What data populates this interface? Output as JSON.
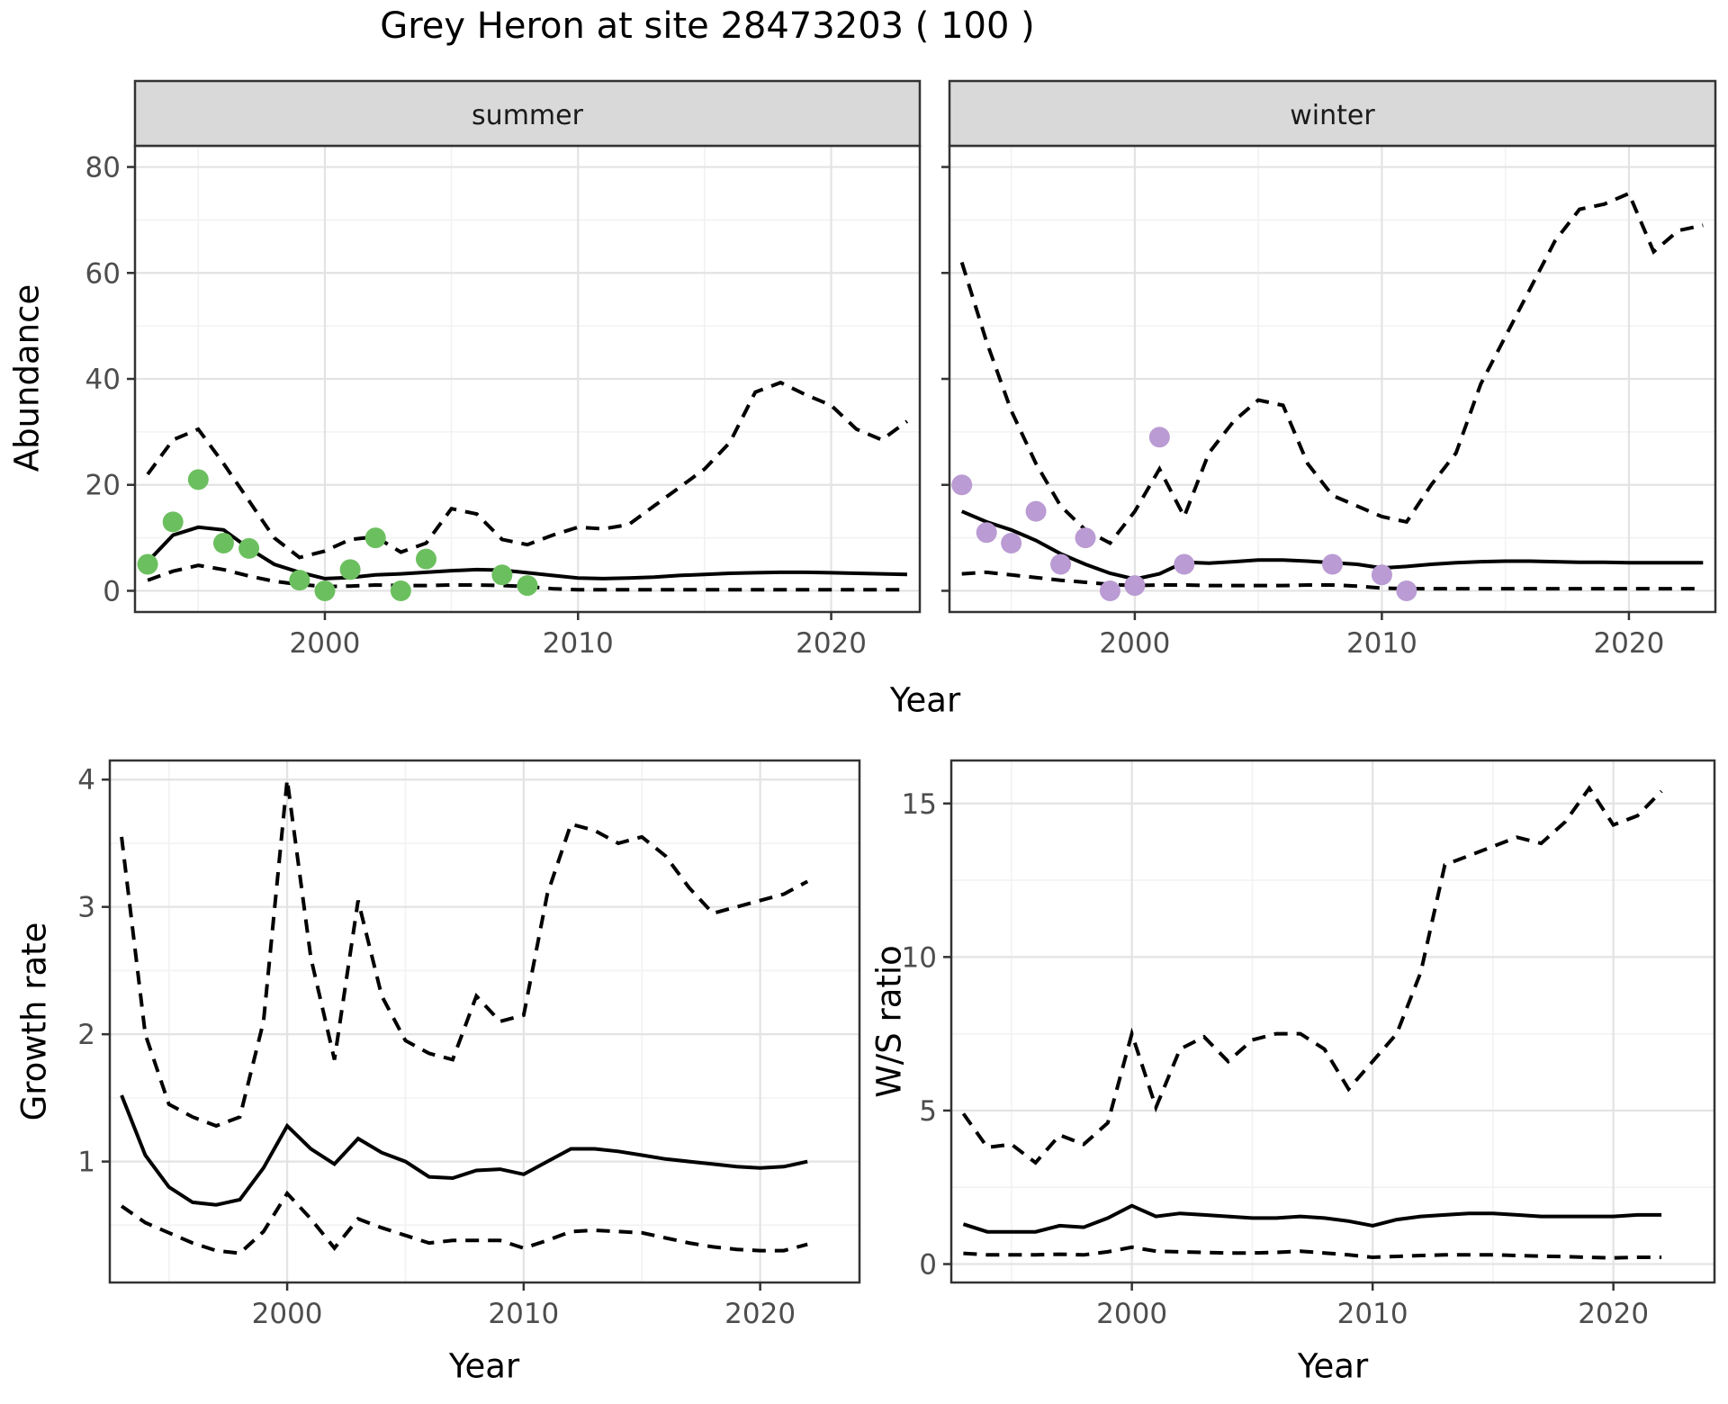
{
  "title": "Grey Heron at site 28473203 ( 100 )",
  "axes": {
    "abundance_label": "Abundance",
    "year_top_label": "Year",
    "growth_label": "Growth rate",
    "ws_label": "W/S ratio",
    "year_growth_label": "Year",
    "year_ws_label": "Year"
  },
  "colors": {
    "summer_point": "#6CBF5F",
    "winter_point": "#BA9BD3",
    "line": "#000000",
    "strip_bg": "#D9D9D9",
    "strip_text": "#1a1a1a",
    "panel_border": "#333333",
    "grid_major": "#E3E3E3",
    "grid_minor": "#F2F2F2",
    "tick_text": "#4d4d4d"
  },
  "chart_data": [
    {
      "id": "abundance_summer",
      "type": "line",
      "facet_label": "summer",
      "xlabel": "Year",
      "ylabel": "Abundance",
      "xlim": [
        1992.5,
        2023.5
      ],
      "ylim": [
        -4,
        84
      ],
      "xticks": [
        2000,
        2010,
        2020
      ],
      "xminor": [
        1995,
        2005,
        2015
      ],
      "yticks": [
        0,
        20,
        40,
        60,
        80
      ],
      "yminor": [
        10,
        30,
        50,
        70
      ],
      "show_ytick_labels": true,
      "years": [
        1993,
        1994,
        1995,
        1996,
        1997,
        1998,
        1999,
        2000,
        2001,
        2002,
        2003,
        2004,
        2005,
        2006,
        2007,
        2008,
        2009,
        2010,
        2011,
        2012,
        2013,
        2014,
        2015,
        2016,
        2017,
        2018,
        2019,
        2020,
        2021,
        2022,
        2023
      ],
      "series": [
        {
          "name": "fit",
          "style": "solid",
          "values": [
            5.5,
            10.5,
            12,
            11.5,
            8,
            5,
            3.5,
            2.3,
            2.5,
            3.0,
            3.2,
            3.5,
            3.8,
            4.0,
            3.9,
            3.4,
            2.9,
            2.4,
            2.3,
            2.4,
            2.6,
            2.9,
            3.1,
            3.3,
            3.4,
            3.5,
            3.5,
            3.4,
            3.3,
            3.2,
            3.1
          ]
        },
        {
          "name": "upper_ci",
          "style": "dashed",
          "values": [
            22,
            28.5,
            30.5,
            24,
            17,
            10,
            6.3,
            7.5,
            9.7,
            10.2,
            7.3,
            9,
            15.5,
            14.5,
            9.7,
            8.7,
            10.5,
            12,
            11.7,
            12.5,
            16,
            19.5,
            23,
            28,
            37.5,
            39.3,
            37,
            35,
            30.5,
            28.5,
            32
          ]
        },
        {
          "name": "lower_ci",
          "style": "dashed",
          "values": [
            2,
            3.7,
            4.8,
            4,
            2.8,
            1.8,
            1.2,
            0.8,
            0.9,
            1.1,
            1.0,
            1.0,
            1.1,
            1.1,
            1.0,
            0.8,
            0.4,
            0.2,
            0.2,
            0.2,
            0.2,
            0.2,
            0.2,
            0.2,
            0.2,
            0.2,
            0.2,
            0.2,
            0.2,
            0.2,
            0.2
          ]
        }
      ],
      "points": {
        "name": "summer_observations",
        "color_key": "summer_point",
        "data": [
          [
            1993,
            5
          ],
          [
            1994,
            13
          ],
          [
            1995,
            21
          ],
          [
            1996,
            9
          ],
          [
            1997,
            8
          ],
          [
            1999,
            2
          ],
          [
            2000,
            0
          ],
          [
            2001,
            4
          ],
          [
            2002,
            10
          ],
          [
            2003,
            0
          ],
          [
            2004,
            6
          ],
          [
            2007,
            3
          ],
          [
            2008,
            1
          ]
        ]
      }
    },
    {
      "id": "abundance_winter",
      "type": "line",
      "facet_label": "winter",
      "xlabel": "Year",
      "ylabel": "Abundance",
      "xlim": [
        1992.5,
        2023.5
      ],
      "ylim": [
        -4,
        84
      ],
      "xticks": [
        2000,
        2010,
        2020
      ],
      "xminor": [
        1995,
        2005,
        2015
      ],
      "yticks": [
        0,
        20,
        40,
        60,
        80
      ],
      "yminor": [
        10,
        30,
        50,
        70
      ],
      "show_ytick_labels": false,
      "years": [
        1993,
        1994,
        1995,
        1996,
        1997,
        1998,
        1999,
        2000,
        2001,
        2002,
        2003,
        2004,
        2005,
        2006,
        2007,
        2008,
        2009,
        2010,
        2011,
        2012,
        2013,
        2014,
        2015,
        2016,
        2017,
        2018,
        2019,
        2020,
        2021,
        2022,
        2023
      ],
      "series": [
        {
          "name": "fit",
          "style": "solid",
          "values": [
            15,
            13,
            11.5,
            9.5,
            7,
            5,
            3.3,
            2.2,
            3.2,
            5.4,
            5.2,
            5.5,
            5.8,
            5.8,
            5.6,
            5.3,
            5.0,
            4.3,
            4.6,
            5.0,
            5.3,
            5.5,
            5.6,
            5.6,
            5.5,
            5.4,
            5.4,
            5.3,
            5.3,
            5.3,
            5.3
          ]
        },
        {
          "name": "upper_ci",
          "style": "dashed",
          "values": [
            62,
            47,
            34,
            24,
            16,
            11.5,
            9,
            15,
            23,
            14,
            26,
            32,
            36,
            35,
            24,
            18,
            16,
            14,
            13,
            20,
            26,
            39,
            48,
            57,
            66,
            72,
            73,
            75,
            64,
            68,
            69
          ]
        },
        {
          "name": "lower_ci",
          "style": "dashed",
          "values": [
            3.2,
            3.5,
            3.0,
            2.5,
            2.0,
            1.6,
            1.2,
            1.0,
            1.1,
            1.1,
            1.0,
            1.0,
            1.0,
            1.0,
            1.1,
            1.1,
            0.9,
            0.5,
            0.4,
            0.4,
            0.4,
            0.4,
            0.4,
            0.4,
            0.4,
            0.4,
            0.4,
            0.4,
            0.4,
            0.4,
            0.4
          ]
        }
      ],
      "points": {
        "name": "winter_observations",
        "color_key": "winter_point",
        "data": [
          [
            1993,
            20
          ],
          [
            1994,
            11
          ],
          [
            1995,
            9
          ],
          [
            1996,
            15
          ],
          [
            1997,
            5
          ],
          [
            1998,
            10
          ],
          [
            1999,
            0
          ],
          [
            2000,
            1
          ],
          [
            2001,
            29
          ],
          [
            2002,
            5
          ],
          [
            2008,
            5
          ],
          [
            2010,
            3
          ],
          [
            2011,
            0
          ]
        ]
      }
    },
    {
      "id": "growth_rate",
      "type": "line",
      "facet_label": "",
      "xlabel": "Year",
      "ylabel": "Growth rate",
      "xlim": [
        1992.5,
        2024.2
      ],
      "ylim": [
        0.05,
        4.15
      ],
      "xticks": [
        2000,
        2010,
        2020
      ],
      "xminor": [
        1995,
        2005,
        2015
      ],
      "yticks": [
        1,
        2,
        3,
        4
      ],
      "yminor": [
        0.5,
        1.5,
        2.5,
        3.5
      ],
      "show_ytick_labels": true,
      "years": [
        1993,
        1994,
        1995,
        1996,
        1997,
        1998,
        1999,
        2000,
        2001,
        2002,
        2003,
        2004,
        2005,
        2006,
        2007,
        2008,
        2009,
        2010,
        2011,
        2012,
        2013,
        2014,
        2015,
        2016,
        2017,
        2018,
        2019,
        2020,
        2021,
        2022
      ],
      "series": [
        {
          "name": "fit",
          "style": "solid",
          "values": [
            1.52,
            1.05,
            0.8,
            0.68,
            0.66,
            0.7,
            0.95,
            1.28,
            1.1,
            0.98,
            1.18,
            1.07,
            1.0,
            0.88,
            0.87,
            0.93,
            0.94,
            0.9,
            1.0,
            1.1,
            1.1,
            1.08,
            1.05,
            1.02,
            1.0,
            0.98,
            0.96,
            0.95,
            0.96,
            1.0
          ]
        },
        {
          "name": "upper_ci",
          "style": "dashed",
          "values": [
            3.55,
            2.0,
            1.45,
            1.35,
            1.28,
            1.35,
            2.1,
            4.0,
            2.6,
            1.8,
            3.05,
            2.3,
            1.95,
            1.85,
            1.8,
            2.3,
            2.1,
            2.15,
            3.1,
            3.65,
            3.6,
            3.5,
            3.55,
            3.4,
            3.15,
            2.95,
            3.0,
            3.05,
            3.1,
            3.2
          ]
        },
        {
          "name": "lower_ci",
          "style": "dashed",
          "values": [
            0.65,
            0.52,
            0.44,
            0.36,
            0.3,
            0.28,
            0.45,
            0.75,
            0.55,
            0.32,
            0.55,
            0.48,
            0.42,
            0.36,
            0.38,
            0.38,
            0.38,
            0.32,
            0.38,
            0.45,
            0.46,
            0.45,
            0.44,
            0.4,
            0.36,
            0.33,
            0.31,
            0.3,
            0.3,
            0.35
          ]
        }
      ],
      "points": null
    },
    {
      "id": "ws_ratio",
      "type": "line",
      "facet_label": "",
      "xlabel": "Year",
      "ylabel": "W/S ratio",
      "xlim": [
        1992.5,
        2024.2
      ],
      "ylim": [
        -0.6,
        16.4
      ],
      "xticks": [
        2000,
        2010,
        2020
      ],
      "xminor": [
        1995,
        2005,
        2015
      ],
      "yticks": [
        0,
        5,
        10,
        15
      ],
      "yminor": [
        2.5,
        7.5,
        12.5
      ],
      "show_ytick_labels": true,
      "years": [
        1993,
        1994,
        1995,
        1996,
        1997,
        1998,
        1999,
        2000,
        2001,
        2002,
        2003,
        2004,
        2005,
        2006,
        2007,
        2008,
        2009,
        2010,
        2011,
        2012,
        2013,
        2014,
        2015,
        2016,
        2017,
        2018,
        2019,
        2020,
        2021,
        2022
      ],
      "series": [
        {
          "name": "fit",
          "style": "solid",
          "values": [
            1.3,
            1.05,
            1.05,
            1.05,
            1.25,
            1.2,
            1.5,
            1.9,
            1.55,
            1.65,
            1.6,
            1.55,
            1.5,
            1.5,
            1.55,
            1.5,
            1.4,
            1.25,
            1.45,
            1.55,
            1.6,
            1.65,
            1.65,
            1.6,
            1.55,
            1.55,
            1.55,
            1.55,
            1.6,
            1.6
          ]
        },
        {
          "name": "upper_ci",
          "style": "dashed",
          "values": [
            4.9,
            3.8,
            3.9,
            3.3,
            4.2,
            3.9,
            4.6,
            7.5,
            5.1,
            7.0,
            7.4,
            6.6,
            7.3,
            7.5,
            7.5,
            7.0,
            5.7,
            6.6,
            7.5,
            9.5,
            13.0,
            13.3,
            13.6,
            13.9,
            13.7,
            14.4,
            15.5,
            14.3,
            14.6,
            15.4
          ]
        },
        {
          "name": "lower_ci",
          "style": "dashed",
          "values": [
            0.35,
            0.3,
            0.3,
            0.3,
            0.32,
            0.3,
            0.4,
            0.55,
            0.42,
            0.4,
            0.38,
            0.36,
            0.36,
            0.38,
            0.42,
            0.36,
            0.3,
            0.22,
            0.25,
            0.28,
            0.3,
            0.3,
            0.3,
            0.28,
            0.26,
            0.24,
            0.22,
            0.2,
            0.22,
            0.22
          ]
        }
      ],
      "points": null
    }
  ]
}
